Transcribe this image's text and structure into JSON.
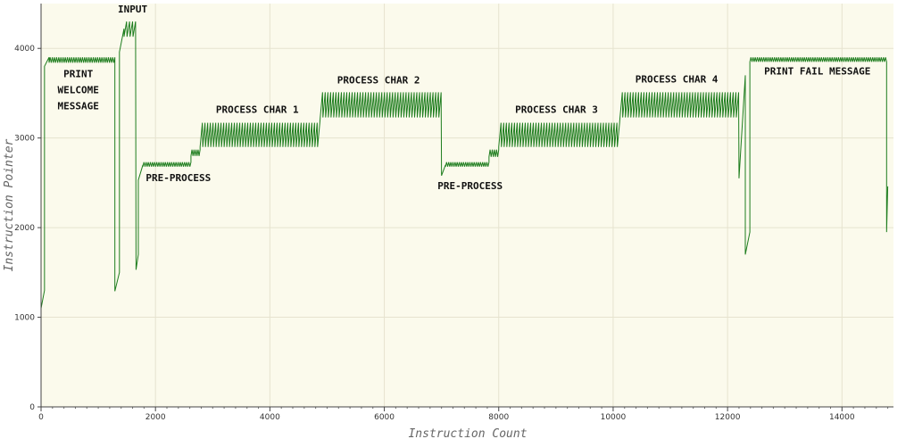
{
  "chart_data": {
    "type": "line",
    "xlabel": "Instruction Count",
    "ylabel": "Instruction Pointer",
    "xlim": [
      0,
      14900
    ],
    "ylim": [
      0,
      4500
    ],
    "x_ticks": [
      0,
      2000,
      4000,
      6000,
      8000,
      10000,
      12000,
      14000
    ],
    "y_ticks": [
      0,
      1000,
      2000,
      3000,
      4000
    ],
    "grid": true,
    "colors": {
      "line": "#1e7d1e",
      "plot_bg": "#fbfaec",
      "grid": "#e6e3cf"
    },
    "series": [
      {
        "segments": [
          {
            "x0": 0,
            "x1": 60,
            "low": 1100,
            "high": 1300,
            "style": "ramp"
          },
          {
            "x0": 60,
            "x1": 140,
            "low": 3800,
            "high": 3900,
            "style": "ramp"
          },
          {
            "x0": 140,
            "x1": 1290,
            "low": 3840,
            "high": 3900,
            "style": "band"
          },
          {
            "x0": 1290,
            "x1": 1370,
            "low": 1290,
            "high": 1500,
            "style": "ramp"
          },
          {
            "x0": 1370,
            "x1": 1450,
            "low": 3960,
            "high": 4220,
            "style": "ramp"
          },
          {
            "x0": 1450,
            "x1": 1660,
            "low": 4130,
            "high": 4300,
            "style": "osc"
          },
          {
            "x0": 1660,
            "x1": 1700,
            "low": 1530,
            "high": 1700,
            "style": "ramp"
          },
          {
            "x0": 1700,
            "x1": 1780,
            "low": 2530,
            "high": 2700,
            "style": "ramp"
          },
          {
            "x0": 1780,
            "x1": 2620,
            "low": 2680,
            "high": 2730,
            "style": "band"
          },
          {
            "x0": 2620,
            "x1": 2780,
            "low": 2800,
            "high": 2870,
            "style": "band"
          },
          {
            "x0": 2780,
            "x1": 4880,
            "low": 2900,
            "high": 3170,
            "style": "osc"
          },
          {
            "x0": 4880,
            "x1": 7000,
            "low": 3230,
            "high": 3510,
            "style": "osc"
          },
          {
            "x0": 7000,
            "x1": 7070,
            "low": 2580,
            "high": 2700,
            "style": "ramp"
          },
          {
            "x0": 7070,
            "x1": 7830,
            "low": 2680,
            "high": 2730,
            "style": "band"
          },
          {
            "x0": 7830,
            "x1": 8000,
            "low": 2790,
            "high": 2870,
            "style": "band"
          },
          {
            "x0": 8000,
            "x1": 10120,
            "low": 2900,
            "high": 3170,
            "style": "osc"
          },
          {
            "x0": 10120,
            "x1": 12200,
            "low": 3230,
            "high": 3510,
            "style": "osc"
          },
          {
            "x0": 12200,
            "x1": 12310,
            "low": 2550,
            "high": 3700,
            "style": "ramp"
          },
          {
            "x0": 12310,
            "x1": 12390,
            "low": 1700,
            "high": 1950,
            "style": "ramp"
          },
          {
            "x0": 12390,
            "x1": 14780,
            "low": 3850,
            "high": 3900,
            "style": "band"
          },
          {
            "x0": 14780,
            "x1": 14800,
            "low": 1950,
            "high": 2460,
            "style": "ramp"
          }
        ]
      }
    ],
    "annotations": [
      {
        "lines": [
          "PRINT",
          "WELCOME",
          "MESSAGE"
        ],
        "x": 650,
        "y": 3680
      },
      {
        "lines": [
          "INPUT"
        ],
        "x": 1600,
        "y": 4400
      },
      {
        "lines": [
          "PRE-PROCESS"
        ],
        "x": 2400,
        "y": 2520
      },
      {
        "lines": [
          "PROCESS CHAR 1"
        ],
        "x": 3780,
        "y": 3280
      },
      {
        "lines": [
          "PROCESS CHAR 2"
        ],
        "x": 5900,
        "y": 3610
      },
      {
        "lines": [
          "PRE-PROCESS"
        ],
        "x": 7500,
        "y": 2430
      },
      {
        "lines": [
          "PROCESS CHAR 3"
        ],
        "x": 9010,
        "y": 3280
      },
      {
        "lines": [
          "PROCESS CHAR 4"
        ],
        "x": 11110,
        "y": 3620
      },
      {
        "lines": [
          "PRINT FAIL MESSAGE"
        ],
        "x": 13570,
        "y": 3710
      }
    ]
  }
}
